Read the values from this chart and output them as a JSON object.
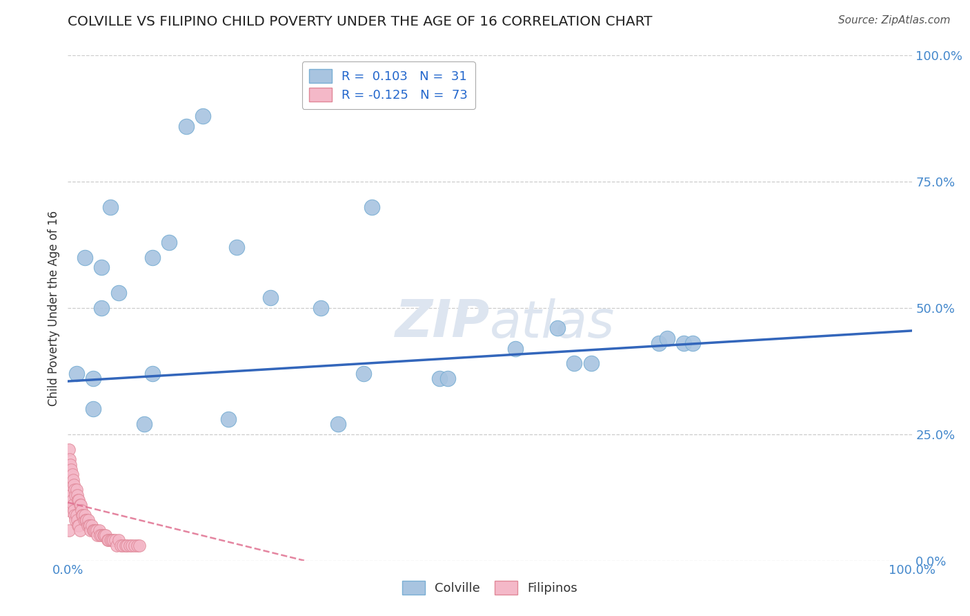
{
  "title": "COLVILLE VS FILIPINO CHILD POVERTY UNDER THE AGE OF 16 CORRELATION CHART",
  "source": "Source: ZipAtlas.com",
  "ylabel": "Child Poverty Under the Age of 16",
  "colville_R": 0.103,
  "colville_N": 31,
  "filipino_R": -0.125,
  "filipino_N": 73,
  "colville_color": "#a8c4e0",
  "colville_edge": "#7aafd4",
  "filipino_color": "#f4b8c8",
  "filipino_edge": "#e08898",
  "blue_line_color": "#3366bb",
  "pink_line_color": "#e07090",
  "watermark_color": "#dde5f0",
  "grid_color": "#cccccc",
  "title_color": "#222222",
  "axis_label_color": "#4488cc",
  "legend_text_color": "#2266cc",
  "xlim": [
    0.0,
    1.0
  ],
  "ylim": [
    0.0,
    1.0
  ],
  "ytick_labels": [
    "0.0%",
    "25.0%",
    "50.0%",
    "75.0%",
    "100.0%"
  ],
  "ytick_values": [
    0.0,
    0.25,
    0.5,
    0.75,
    1.0
  ],
  "colville_x": [
    0.01,
    0.03,
    0.02,
    0.04,
    0.04,
    0.06,
    0.1,
    0.12,
    0.14,
    0.16,
    0.2,
    0.24,
    0.3,
    0.35,
    0.44,
    0.45,
    0.53,
    0.58,
    0.6,
    0.62,
    0.7,
    0.71,
    0.73,
    0.74,
    0.32,
    0.19,
    0.05,
    0.03,
    0.09,
    0.1,
    0.36
  ],
  "colville_y": [
    0.37,
    0.36,
    0.6,
    0.58,
    0.5,
    0.53,
    0.6,
    0.63,
    0.86,
    0.88,
    0.62,
    0.52,
    0.5,
    0.37,
    0.36,
    0.36,
    0.42,
    0.46,
    0.39,
    0.39,
    0.43,
    0.44,
    0.43,
    0.43,
    0.27,
    0.28,
    0.7,
    0.3,
    0.27,
    0.37,
    0.7
  ],
  "filipino_x": [
    0.001,
    0.001,
    0.001,
    0.001,
    0.001,
    0.002,
    0.002,
    0.003,
    0.003,
    0.004,
    0.004,
    0.005,
    0.005,
    0.006,
    0.006,
    0.007,
    0.007,
    0.008,
    0.008,
    0.009,
    0.009,
    0.01,
    0.01,
    0.011,
    0.011,
    0.012,
    0.012,
    0.013,
    0.013,
    0.014,
    0.014,
    0.015,
    0.016,
    0.017,
    0.018,
    0.019,
    0.02,
    0.021,
    0.022,
    0.023,
    0.024,
    0.025,
    0.026,
    0.027,
    0.028,
    0.03,
    0.031,
    0.032,
    0.034,
    0.035,
    0.037,
    0.038,
    0.04,
    0.042,
    0.043,
    0.045,
    0.047,
    0.048,
    0.05,
    0.052,
    0.054,
    0.056,
    0.058,
    0.06,
    0.063,
    0.065,
    0.068,
    0.07,
    0.073,
    0.076,
    0.079,
    0.082,
    0.085
  ],
  "filipino_y": [
    0.22,
    0.18,
    0.14,
    0.1,
    0.06,
    0.2,
    0.16,
    0.19,
    0.15,
    0.18,
    0.13,
    0.17,
    0.12,
    0.16,
    0.11,
    0.15,
    0.1,
    0.14,
    0.09,
    0.13,
    0.08,
    0.14,
    0.09,
    0.13,
    0.08,
    0.12,
    0.07,
    0.12,
    0.07,
    0.11,
    0.06,
    0.11,
    0.1,
    0.09,
    0.09,
    0.08,
    0.09,
    0.08,
    0.08,
    0.07,
    0.08,
    0.07,
    0.07,
    0.06,
    0.07,
    0.06,
    0.06,
    0.06,
    0.06,
    0.05,
    0.06,
    0.05,
    0.05,
    0.05,
    0.05,
    0.05,
    0.04,
    0.04,
    0.04,
    0.04,
    0.04,
    0.04,
    0.03,
    0.04,
    0.03,
    0.03,
    0.03,
    0.03,
    0.03,
    0.03,
    0.03,
    0.03,
    0.03
  ],
  "colville_line_x": [
    0.0,
    1.0
  ],
  "colville_line_y": [
    0.355,
    0.455
  ],
  "filipino_line_x": [
    0.0,
    0.28
  ],
  "filipino_line_y": [
    0.115,
    0.0
  ],
  "background_color": "#ffffff",
  "figsize": [
    14.06,
    8.92
  ],
  "dpi": 100
}
